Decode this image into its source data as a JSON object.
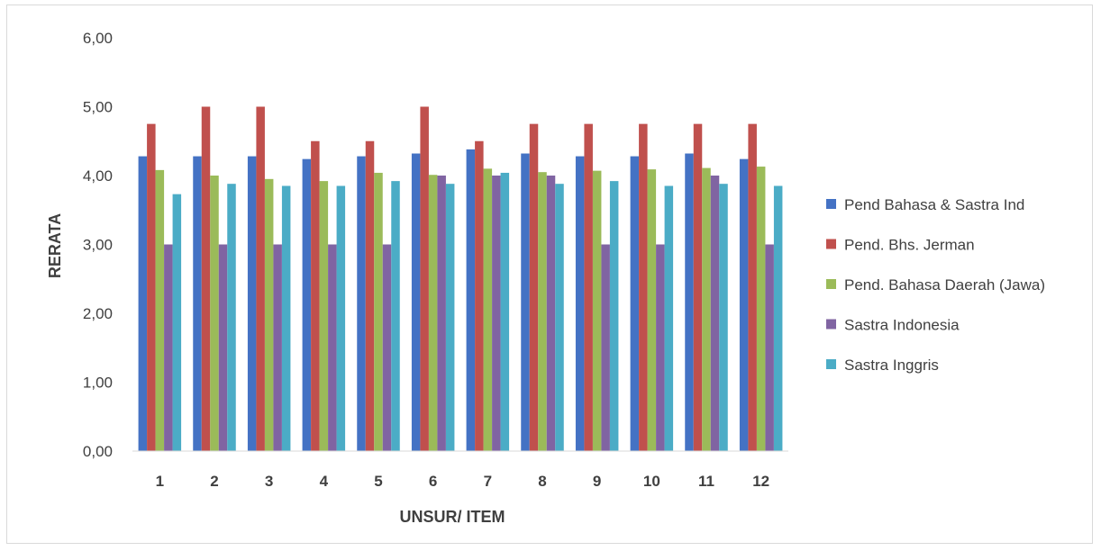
{
  "chart_data": {
    "type": "bar",
    "xlabel": "UNSUR/ ITEM",
    "ylabel": "RERATA",
    "ylim": [
      0,
      6
    ],
    "y_ticks": [
      "0,00",
      "1,00",
      "2,00",
      "3,00",
      "4,00",
      "5,00",
      "6,00"
    ],
    "grid": false,
    "legend_position": "right",
    "categories": [
      "1",
      "2",
      "3",
      "4",
      "5",
      "6",
      "7",
      "8",
      "9",
      "10",
      "11",
      "12"
    ],
    "series": [
      {
        "name": "Pend Bahasa & Sastra Ind",
        "color": "#4472c4",
        "values": [
          4.28,
          4.28,
          4.28,
          4.24,
          4.28,
          4.32,
          4.38,
          4.32,
          4.28,
          4.28,
          4.32,
          4.24
        ]
      },
      {
        "name": "Pend. Bhs. Jerman",
        "color": "#c0504d",
        "values": [
          4.75,
          5.0,
          5.0,
          4.5,
          4.5,
          5.0,
          4.5,
          4.75,
          4.75,
          4.75,
          4.75,
          4.75
        ]
      },
      {
        "name": "Pend. Bahasa Daerah (Jawa)",
        "color": "#9bbb59",
        "values": [
          4.08,
          4.0,
          3.95,
          3.92,
          4.04,
          4.01,
          4.1,
          4.05,
          4.07,
          4.09,
          4.11,
          4.13
        ]
      },
      {
        "name": "Sastra Indonesia",
        "color": "#8064a2",
        "values": [
          3.0,
          3.0,
          3.0,
          3.0,
          3.0,
          4.0,
          4.0,
          4.0,
          3.0,
          3.0,
          4.0,
          3.0
        ]
      },
      {
        "name": "Sastra Inggris",
        "color": "#4bacc6",
        "values": [
          3.73,
          3.88,
          3.85,
          3.85,
          3.92,
          3.88,
          4.04,
          3.88,
          3.92,
          3.85,
          3.88,
          3.85
        ]
      }
    ]
  }
}
